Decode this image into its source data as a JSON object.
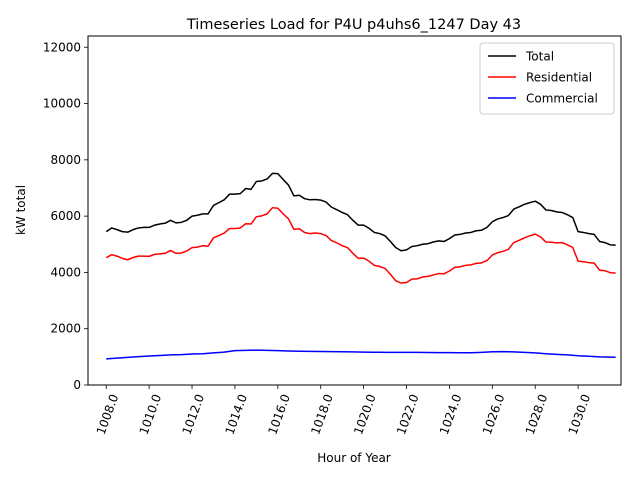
{
  "chart_data": {
    "type": "line",
    "title": "Timeseries Load for P4U p4uhs6_1247  Day 43",
    "xlabel": "Hour of Year",
    "ylabel": "kW total",
    "xlim": [
      1007.15,
      1032.0
    ],
    "ylim": [
      0,
      12400
    ],
    "xticks": [
      1008,
      1010,
      1012,
      1014,
      1016,
      1018,
      1020,
      1022,
      1024,
      1026,
      1028,
      1030
    ],
    "xtick_labels": [
      "1008.0",
      "1010.0",
      "1012.0",
      "1014.0",
      "1016.0",
      "1018.0",
      "1020.0",
      "1022.0",
      "1024.0",
      "1026.0",
      "1028.0",
      "1030.0"
    ],
    "yticks": [
      0,
      2000,
      4000,
      6000,
      8000,
      10000,
      12000
    ],
    "ytick_labels": [
      "0",
      "2000",
      "4000",
      "6000",
      "8000",
      "10000",
      "12000"
    ],
    "grid": false,
    "legend_position": "top-right",
    "series": [
      {
        "name": "Total",
        "color": "#000000",
        "points": [
          [
            1008.0,
            5450
          ],
          [
            1008.25,
            5580
          ],
          [
            1008.5,
            5520
          ],
          [
            1008.75,
            5450
          ],
          [
            1009.0,
            5430
          ],
          [
            1009.25,
            5520
          ],
          [
            1009.5,
            5580
          ],
          [
            1009.75,
            5600
          ],
          [
            1010.0,
            5600
          ],
          [
            1010.25,
            5680
          ],
          [
            1010.5,
            5720
          ],
          [
            1010.75,
            5750
          ],
          [
            1011.0,
            5850
          ],
          [
            1011.25,
            5760
          ],
          [
            1011.5,
            5780
          ],
          [
            1011.75,
            5850
          ],
          [
            1012.0,
            6000
          ],
          [
            1012.25,
            6030
          ],
          [
            1012.5,
            6080
          ],
          [
            1012.75,
            6080
          ],
          [
            1013.0,
            6380
          ],
          [
            1013.25,
            6480
          ],
          [
            1013.5,
            6580
          ],
          [
            1013.75,
            6780
          ],
          [
            1014.0,
            6780
          ],
          [
            1014.25,
            6800
          ],
          [
            1014.5,
            6980
          ],
          [
            1014.75,
            6950
          ],
          [
            1015.0,
            7230
          ],
          [
            1015.25,
            7250
          ],
          [
            1015.5,
            7320
          ],
          [
            1015.75,
            7520
          ],
          [
            1016.0,
            7510
          ],
          [
            1016.25,
            7300
          ],
          [
            1016.5,
            7100
          ],
          [
            1016.75,
            6720
          ],
          [
            1017.0,
            6740
          ],
          [
            1017.25,
            6620
          ],
          [
            1017.5,
            6580
          ],
          [
            1017.75,
            6590
          ],
          [
            1018.0,
            6570
          ],
          [
            1018.25,
            6500
          ],
          [
            1018.5,
            6320
          ],
          [
            1018.75,
            6230
          ],
          [
            1019.0,
            6130
          ],
          [
            1019.25,
            6050
          ],
          [
            1019.5,
            5850
          ],
          [
            1019.75,
            5680
          ],
          [
            1020.0,
            5680
          ],
          [
            1020.25,
            5570
          ],
          [
            1020.5,
            5420
          ],
          [
            1020.75,
            5380
          ],
          [
            1021.0,
            5300
          ],
          [
            1021.25,
            5100
          ],
          [
            1021.5,
            4880
          ],
          [
            1021.75,
            4770
          ],
          [
            1022.0,
            4800
          ],
          [
            1022.25,
            4920
          ],
          [
            1022.5,
            4950
          ],
          [
            1022.75,
            5000
          ],
          [
            1023.0,
            5020
          ],
          [
            1023.25,
            5080
          ],
          [
            1023.5,
            5120
          ],
          [
            1023.75,
            5100
          ],
          [
            1024.0,
            5200
          ],
          [
            1024.25,
            5330
          ],
          [
            1024.5,
            5350
          ],
          [
            1024.75,
            5400
          ],
          [
            1025.0,
            5420
          ],
          [
            1025.25,
            5480
          ],
          [
            1025.5,
            5500
          ],
          [
            1025.75,
            5600
          ],
          [
            1026.0,
            5800
          ],
          [
            1026.25,
            5900
          ],
          [
            1026.5,
            5950
          ],
          [
            1026.75,
            6020
          ],
          [
            1027.0,
            6250
          ],
          [
            1027.25,
            6330
          ],
          [
            1027.5,
            6420
          ],
          [
            1027.75,
            6480
          ],
          [
            1028.0,
            6530
          ],
          [
            1028.25,
            6420
          ],
          [
            1028.5,
            6220
          ],
          [
            1028.75,
            6200
          ],
          [
            1029.0,
            6150
          ],
          [
            1029.25,
            6130
          ],
          [
            1029.5,
            6050
          ],
          [
            1029.75,
            5950
          ],
          [
            1030.0,
            5450
          ],
          [
            1030.25,
            5420
          ],
          [
            1030.5,
            5380
          ],
          [
            1030.75,
            5350
          ],
          [
            1031.0,
            5100
          ],
          [
            1031.25,
            5060
          ],
          [
            1031.5,
            4980
          ],
          [
            1031.75,
            4970
          ]
        ]
      },
      {
        "name": "Residential",
        "color": "#ff0000",
        "points": [
          [
            1008.0,
            4520
          ],
          [
            1008.25,
            4630
          ],
          [
            1008.5,
            4580
          ],
          [
            1008.75,
            4500
          ],
          [
            1009.0,
            4450
          ],
          [
            1009.25,
            4530
          ],
          [
            1009.5,
            4580
          ],
          [
            1009.75,
            4580
          ],
          [
            1010.0,
            4570
          ],
          [
            1010.25,
            4640
          ],
          [
            1010.5,
            4660
          ],
          [
            1010.75,
            4680
          ],
          [
            1011.0,
            4780
          ],
          [
            1011.25,
            4680
          ],
          [
            1011.5,
            4690
          ],
          [
            1011.75,
            4760
          ],
          [
            1012.0,
            4880
          ],
          [
            1012.25,
            4900
          ],
          [
            1012.5,
            4950
          ],
          [
            1012.75,
            4930
          ],
          [
            1013.0,
            5230
          ],
          [
            1013.25,
            5310
          ],
          [
            1013.5,
            5400
          ],
          [
            1013.75,
            5560
          ],
          [
            1014.0,
            5560
          ],
          [
            1014.25,
            5580
          ],
          [
            1014.5,
            5730
          ],
          [
            1014.75,
            5720
          ],
          [
            1015.0,
            5980
          ],
          [
            1015.25,
            6010
          ],
          [
            1015.5,
            6080
          ],
          [
            1015.75,
            6300
          ],
          [
            1016.0,
            6280
          ],
          [
            1016.25,
            6080
          ],
          [
            1016.5,
            5900
          ],
          [
            1016.75,
            5530
          ],
          [
            1017.0,
            5550
          ],
          [
            1017.25,
            5420
          ],
          [
            1017.5,
            5380
          ],
          [
            1017.75,
            5400
          ],
          [
            1018.0,
            5380
          ],
          [
            1018.25,
            5310
          ],
          [
            1018.5,
            5130
          ],
          [
            1018.75,
            5050
          ],
          [
            1019.0,
            4950
          ],
          [
            1019.25,
            4880
          ],
          [
            1019.5,
            4680
          ],
          [
            1019.75,
            4500
          ],
          [
            1020.0,
            4510
          ],
          [
            1020.25,
            4400
          ],
          [
            1020.5,
            4250
          ],
          [
            1020.75,
            4210
          ],
          [
            1021.0,
            4140
          ],
          [
            1021.25,
            3930
          ],
          [
            1021.5,
            3700
          ],
          [
            1021.75,
            3620
          ],
          [
            1022.0,
            3640
          ],
          [
            1022.25,
            3760
          ],
          [
            1022.5,
            3770
          ],
          [
            1022.75,
            3840
          ],
          [
            1023.0,
            3860
          ],
          [
            1023.25,
            3910
          ],
          [
            1023.5,
            3960
          ],
          [
            1023.75,
            3950
          ],
          [
            1024.0,
            4050
          ],
          [
            1024.25,
            4180
          ],
          [
            1024.5,
            4200
          ],
          [
            1024.75,
            4250
          ],
          [
            1025.0,
            4270
          ],
          [
            1025.25,
            4320
          ],
          [
            1025.5,
            4340
          ],
          [
            1025.75,
            4420
          ],
          [
            1026.0,
            4620
          ],
          [
            1026.25,
            4700
          ],
          [
            1026.5,
            4750
          ],
          [
            1026.75,
            4820
          ],
          [
            1027.0,
            5060
          ],
          [
            1027.25,
            5140
          ],
          [
            1027.5,
            5230
          ],
          [
            1027.75,
            5300
          ],
          [
            1028.0,
            5360
          ],
          [
            1028.25,
            5260
          ],
          [
            1028.5,
            5080
          ],
          [
            1028.75,
            5070
          ],
          [
            1029.0,
            5050
          ],
          [
            1029.25,
            5060
          ],
          [
            1029.5,
            4980
          ],
          [
            1029.75,
            4890
          ],
          [
            1030.0,
            4400
          ],
          [
            1030.25,
            4380
          ],
          [
            1030.5,
            4350
          ],
          [
            1030.75,
            4330
          ],
          [
            1031.0,
            4080
          ],
          [
            1031.25,
            4060
          ],
          [
            1031.5,
            3990
          ],
          [
            1031.75,
            3980
          ]
        ]
      },
      {
        "name": "Commercial",
        "color": "#0000ff",
        "points": [
          [
            1008.0,
            930
          ],
          [
            1008.5,
            955
          ],
          [
            1009.0,
            980
          ],
          [
            1009.5,
            1010
          ],
          [
            1010.0,
            1030
          ],
          [
            1010.5,
            1050
          ],
          [
            1011.0,
            1070
          ],
          [
            1011.5,
            1080
          ],
          [
            1012.0,
            1100
          ],
          [
            1012.5,
            1110
          ],
          [
            1013.0,
            1140
          ],
          [
            1013.5,
            1170
          ],
          [
            1014.0,
            1220
          ],
          [
            1014.5,
            1230
          ],
          [
            1015.0,
            1240
          ],
          [
            1015.5,
            1230
          ],
          [
            1016.0,
            1220
          ],
          [
            1016.5,
            1210
          ],
          [
            1017.0,
            1200
          ],
          [
            1017.5,
            1195
          ],
          [
            1018.0,
            1190
          ],
          [
            1018.5,
            1185
          ],
          [
            1019.0,
            1180
          ],
          [
            1019.5,
            1178
          ],
          [
            1020.0,
            1170
          ],
          [
            1020.5,
            1165
          ],
          [
            1021.0,
            1160
          ],
          [
            1021.5,
            1158
          ],
          [
            1022.0,
            1160
          ],
          [
            1022.5,
            1158
          ],
          [
            1023.0,
            1155
          ],
          [
            1023.5,
            1150
          ],
          [
            1024.0,
            1150
          ],
          [
            1024.5,
            1145
          ],
          [
            1025.0,
            1148
          ],
          [
            1025.5,
            1160
          ],
          [
            1026.0,
            1180
          ],
          [
            1026.5,
            1185
          ],
          [
            1027.0,
            1175
          ],
          [
            1027.5,
            1160
          ],
          [
            1028.0,
            1140
          ],
          [
            1028.5,
            1110
          ],
          [
            1029.0,
            1090
          ],
          [
            1029.5,
            1070
          ],
          [
            1030.0,
            1040
          ],
          [
            1030.5,
            1020
          ],
          [
            1031.0,
            1000
          ],
          [
            1031.5,
            990
          ],
          [
            1031.75,
            985
          ]
        ]
      }
    ]
  }
}
